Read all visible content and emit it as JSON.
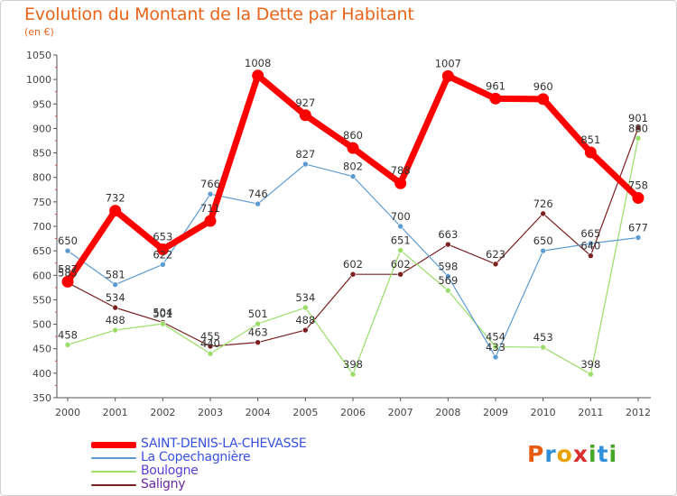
{
  "title": "Evolution du Montant de la Dette par Habitant",
  "unit": "(en €)",
  "logo": {
    "letters": [
      "P",
      "r",
      "o",
      "x",
      "i",
      "t",
      "i"
    ],
    "classes": [
      "p",
      "r",
      "o",
      "x",
      "i",
      "t",
      "i"
    ]
  },
  "chart_data": {
    "type": "line",
    "title": "Evolution du Montant de la Dette par Habitant",
    "subtitle": "(en €)",
    "xlabel": "",
    "ylabel": "",
    "x": [
      "2000",
      "2001",
      "2002",
      "2003",
      "2004",
      "2005",
      "2006",
      "2007",
      "2008",
      "2009",
      "2010",
      "2011",
      "2012"
    ],
    "ylim": [
      350,
      1050
    ],
    "yticks": [
      "350",
      "400",
      "450",
      "500",
      "550",
      "600",
      "650",
      "700",
      "750",
      "800",
      "850",
      "900",
      "950",
      "1000",
      "1050"
    ],
    "grid": false,
    "legend_position": "bottom-left",
    "series": [
      {
        "name": "SAINT-DENIS-LA-CHEVASSE",
        "color": "#ff0000",
        "values": [
          587,
          732,
          653,
          711,
          1008,
          927,
          860,
          788,
          1007,
          961,
          960,
          851,
          758
        ],
        "labels": [
          "587",
          "732",
          "653",
          "711",
          "1008",
          "927",
          "860",
          "788",
          "1007",
          "961",
          "960",
          "851",
          "758"
        ]
      },
      {
        "name": "La Copechagnière",
        "color": "#5b9bd1",
        "values": [
          650,
          581,
          622,
          766,
          746,
          827,
          802,
          700,
          598,
          433,
          650,
          665,
          677
        ],
        "labels": [
          "650",
          "581",
          "622",
          "766",
          "746",
          "827",
          "802",
          "700",
          "598",
          "433",
          "650",
          "665",
          "677"
        ]
      },
      {
        "name": "Boulogne",
        "color": "#99dd66",
        "values": [
          458,
          488,
          501,
          440,
          501,
          534,
          398,
          651,
          569,
          454,
          453,
          398,
          880
        ],
        "labels": [
          "458",
          "488",
          "501",
          "440",
          "501",
          "534",
          "398",
          "651",
          "569",
          "454",
          "453",
          "398",
          "880"
        ]
      },
      {
        "name": "Saligny",
        "color": "#7a2020",
        "values": [
          585,
          534,
          504,
          455,
          463,
          488,
          602,
          602,
          663,
          623,
          726,
          640,
          901
        ],
        "labels": [
          "585",
          "534",
          "504",
          "455",
          "463",
          "488",
          "602",
          "602",
          "663",
          "623",
          "726",
          "640",
          "901"
        ]
      }
    ]
  }
}
